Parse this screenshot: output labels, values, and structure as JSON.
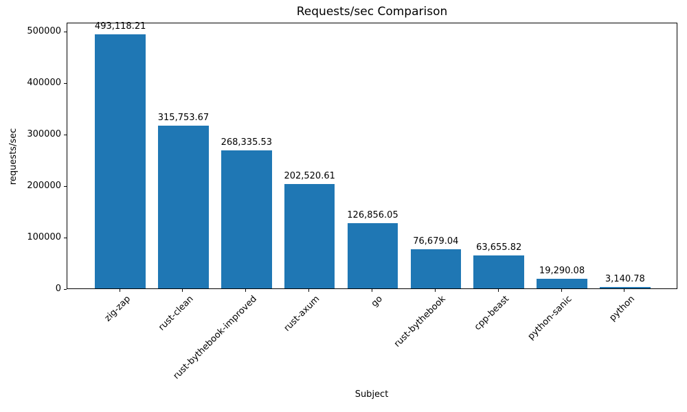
{
  "chart_data": {
    "type": "bar",
    "title": "Requests/sec Comparison",
    "xlabel": "Subject",
    "ylabel": "requests/sec",
    "categories": [
      "zig-zap",
      "rust-clean",
      "rust-bythebook-improved",
      "rust-axum",
      "go",
      "rust-bythebook",
      "cpp-beast",
      "python-sanic",
      "python"
    ],
    "values": [
      493118.21,
      315753.67,
      268335.53,
      202520.61,
      126856.05,
      76679.04,
      63655.82,
      19290.08,
      3140.78
    ],
    "value_labels": [
      "493,118.21",
      "315,753.67",
      "268,335.53",
      "202,520.61",
      "126,856.05",
      "76,679.04",
      "63,655.82",
      "19,290.08",
      "3,140.78"
    ],
    "yticks": [
      0,
      100000,
      200000,
      300000,
      400000,
      500000
    ],
    "ytick_labels": [
      "0",
      "100000",
      "200000",
      "300000",
      "400000",
      "500000"
    ],
    "ylim": [
      0,
      517774
    ],
    "x_tick_rotation": 45,
    "grid": false,
    "legend": false,
    "bar_color": "#1f77b4",
    "frame_color": "#000000",
    "background_color": "#ffffff"
  }
}
